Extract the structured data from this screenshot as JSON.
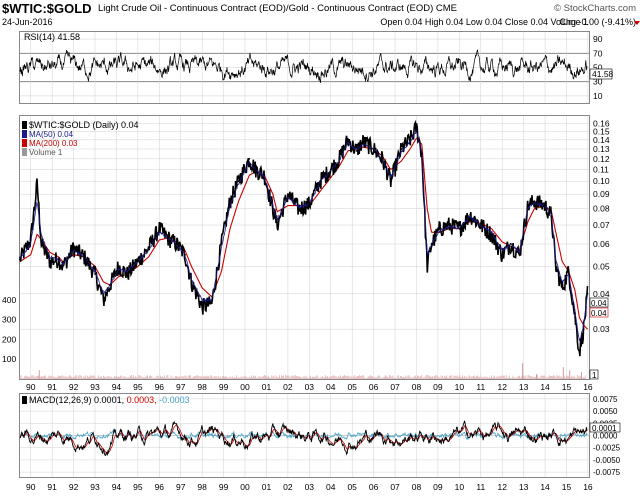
{
  "header": {
    "symbol": "$WTIC:$GOLD",
    "subtitle": "Light Crude Oil - Continuous Contract (EOD)/Gold - Continuous Contract (EOD)  CME",
    "brand": "© StockCharts.com",
    "date": "24-Jun-2016",
    "ohlc": "Open 0.04  High 0.04  Low 0.04  Close 0.04  Volume 1",
    "chg": "Chg -0.00 (-9.41%)",
    "chg_color": "#d00000"
  },
  "rsi_panel": {
    "label": "RSI(14) 41.58",
    "current_label": "41.58",
    "ticks": [
      "90",
      "70",
      "50",
      "30",
      "10"
    ]
  },
  "price_panel": {
    "label": "$WTIC:$GOLD (Daily) 0.04",
    "ma50_label": "MA(50) 0.04",
    "ma200_label": "MA(200) 0.03",
    "volume_label": "Volume 1",
    "price_ticks": [
      "0.16",
      "0.15",
      "0.14",
      "0.13",
      "0.12",
      "0.11",
      "0.10",
      "0.09",
      "0.08",
      "0.07",
      "0.06",
      "0.05",
      "0.04",
      "0.03"
    ],
    "volume_ticks": [
      "400",
      "300",
      "200",
      "100"
    ],
    "last_price_label": "0.04",
    "last_ma_label": "0.04",
    "volume_last_label": "1"
  },
  "macd_panel": {
    "label_prefix": "MACD(12,26,9)",
    "macd_value": "0.0001,",
    "signal_value": "0.0003,",
    "hist_value": "-0.0003",
    "ticks": [
      "0.0075",
      "0.0050",
      "0.0025",
      "0.0000",
      "-0.0025",
      "-0.0050",
      "-0.0075"
    ],
    "current_label": "0.0001"
  },
  "x_axis": {
    "labels": [
      "90",
      "91",
      "92",
      "93",
      "94",
      "95",
      "96",
      "97",
      "98",
      "99",
      "00",
      "01",
      "02",
      "03",
      "04",
      "05",
      "06",
      "07",
      "08",
      "09",
      "10",
      "11",
      "12",
      "13",
      "14",
      "15",
      "16"
    ]
  },
  "colors": {
    "price": "#000000",
    "ma50": "#1a1a8c",
    "ma200": "#cc0000",
    "volume": "#d89a9a",
    "macd": "#000000",
    "macd_signal": "#cc0000",
    "macd_hist": "#4aa3c8",
    "grid": "#d0d0d0"
  },
  "chart_data": [
    {
      "type": "line",
      "title": "RSI(14) 41.58",
      "ylim": [
        0,
        100
      ],
      "reference_lines": [
        70,
        30
      ],
      "last_value": 41.58,
      "grid": true
    },
    {
      "type": "line",
      "title": "$WTIC:$GOLD (Daily) 0.04",
      "x": [
        1990.0,
        1990.5,
        1990.8,
        1991.0,
        1991.4,
        1991.8,
        1992.0,
        1992.5,
        1993.0,
        1993.5,
        1993.9,
        1994.2,
        1994.6,
        1995.0,
        1995.5,
        1996.0,
        1996.5,
        1996.9,
        1997.3,
        1997.7,
        1998.0,
        1998.5,
        1998.95,
        1999.4,
        1999.8,
        2000.2,
        2000.7,
        2001.0,
        2001.4,
        2001.8,
        2002.0,
        2002.5,
        2003.0,
        2003.5,
        2004.0,
        2004.5,
        2004.9,
        2005.3,
        2005.7,
        2006.0,
        2006.5,
        2006.9,
        2007.3,
        2007.8,
        2008.2,
        2008.5,
        2008.75,
        2009.0,
        2009.2,
        2009.6,
        2010.0,
        2010.5,
        2011.0,
        2011.5,
        2012.0,
        2012.5,
        2012.9,
        2013.3,
        2013.7,
        2014.0,
        2014.5,
        2014.8,
        2015.0,
        2015.3,
        2015.6,
        2015.9,
        2016.1,
        2016.3,
        2016.48
      ],
      "series": [
        {
          "name": "$WTIC:$GOLD",
          "values": [
            0.053,
            0.062,
            0.098,
            0.06,
            0.052,
            0.053,
            0.05,
            0.058,
            0.054,
            0.047,
            0.038,
            0.043,
            0.05,
            0.047,
            0.052,
            0.058,
            0.068,
            0.063,
            0.06,
            0.055,
            0.044,
            0.036,
            0.037,
            0.06,
            0.085,
            0.1,
            0.12,
            0.11,
            0.105,
            0.08,
            0.07,
            0.09,
            0.08,
            0.083,
            0.1,
            0.11,
            0.12,
            0.14,
            0.128,
            0.138,
            0.13,
            0.12,
            0.1,
            0.13,
            0.14,
            0.155,
            0.125,
            0.05,
            0.06,
            0.068,
            0.07,
            0.068,
            0.076,
            0.07,
            0.065,
            0.055,
            0.06,
            0.055,
            0.082,
            0.085,
            0.082,
            0.075,
            0.05,
            0.042,
            0.048,
            0.033,
            0.025,
            0.03,
            0.04
          ]
        },
        {
          "name": "MA(50)",
          "values": [
            0.053,
            0.06,
            0.085,
            0.064,
            0.054,
            0.053,
            0.051,
            0.057,
            0.054,
            0.048,
            0.04,
            0.043,
            0.049,
            0.048,
            0.052,
            0.057,
            0.066,
            0.063,
            0.06,
            0.055,
            0.045,
            0.038,
            0.038,
            0.058,
            0.082,
            0.098,
            0.117,
            0.11,
            0.104,
            0.082,
            0.072,
            0.088,
            0.081,
            0.083,
            0.099,
            0.109,
            0.118,
            0.137,
            0.129,
            0.135,
            0.13,
            0.12,
            0.103,
            0.127,
            0.138,
            0.15,
            0.128,
            0.055,
            0.06,
            0.067,
            0.069,
            0.068,
            0.075,
            0.07,
            0.066,
            0.057,
            0.06,
            0.056,
            0.08,
            0.084,
            0.082,
            0.076,
            0.053,
            0.044,
            0.047,
            0.035,
            0.027,
            0.031,
            0.04
          ]
        },
        {
          "name": "MA(200)",
          "values": [
            0.052,
            0.055,
            0.065,
            0.062,
            0.056,
            0.054,
            0.052,
            0.055,
            0.054,
            0.05,
            0.044,
            0.043,
            0.046,
            0.047,
            0.05,
            0.054,
            0.062,
            0.063,
            0.061,
            0.057,
            0.05,
            0.042,
            0.039,
            0.048,
            0.068,
            0.085,
            0.105,
            0.108,
            0.105,
            0.09,
            0.078,
            0.082,
            0.082,
            0.082,
            0.092,
            0.103,
            0.113,
            0.128,
            0.13,
            0.132,
            0.13,
            0.123,
            0.11,
            0.118,
            0.13,
            0.142,
            0.135,
            0.08,
            0.066,
            0.066,
            0.068,
            0.068,
            0.072,
            0.071,
            0.068,
            0.061,
            0.059,
            0.057,
            0.072,
            0.08,
            0.082,
            0.078,
            0.066,
            0.052,
            0.048,
            0.041,
            0.033,
            0.031,
            0.03
          ]
        }
      ],
      "ylim": [
        0.02,
        0.17
      ],
      "yscale": "log",
      "grid": true
    },
    {
      "type": "line",
      "title": "MACD(12,26,9) 0.0001, 0.0003, -0.0003",
      "ylim": [
        -0.0085,
        0.0085
      ],
      "last_value": 0.0001,
      "grid": true
    }
  ]
}
